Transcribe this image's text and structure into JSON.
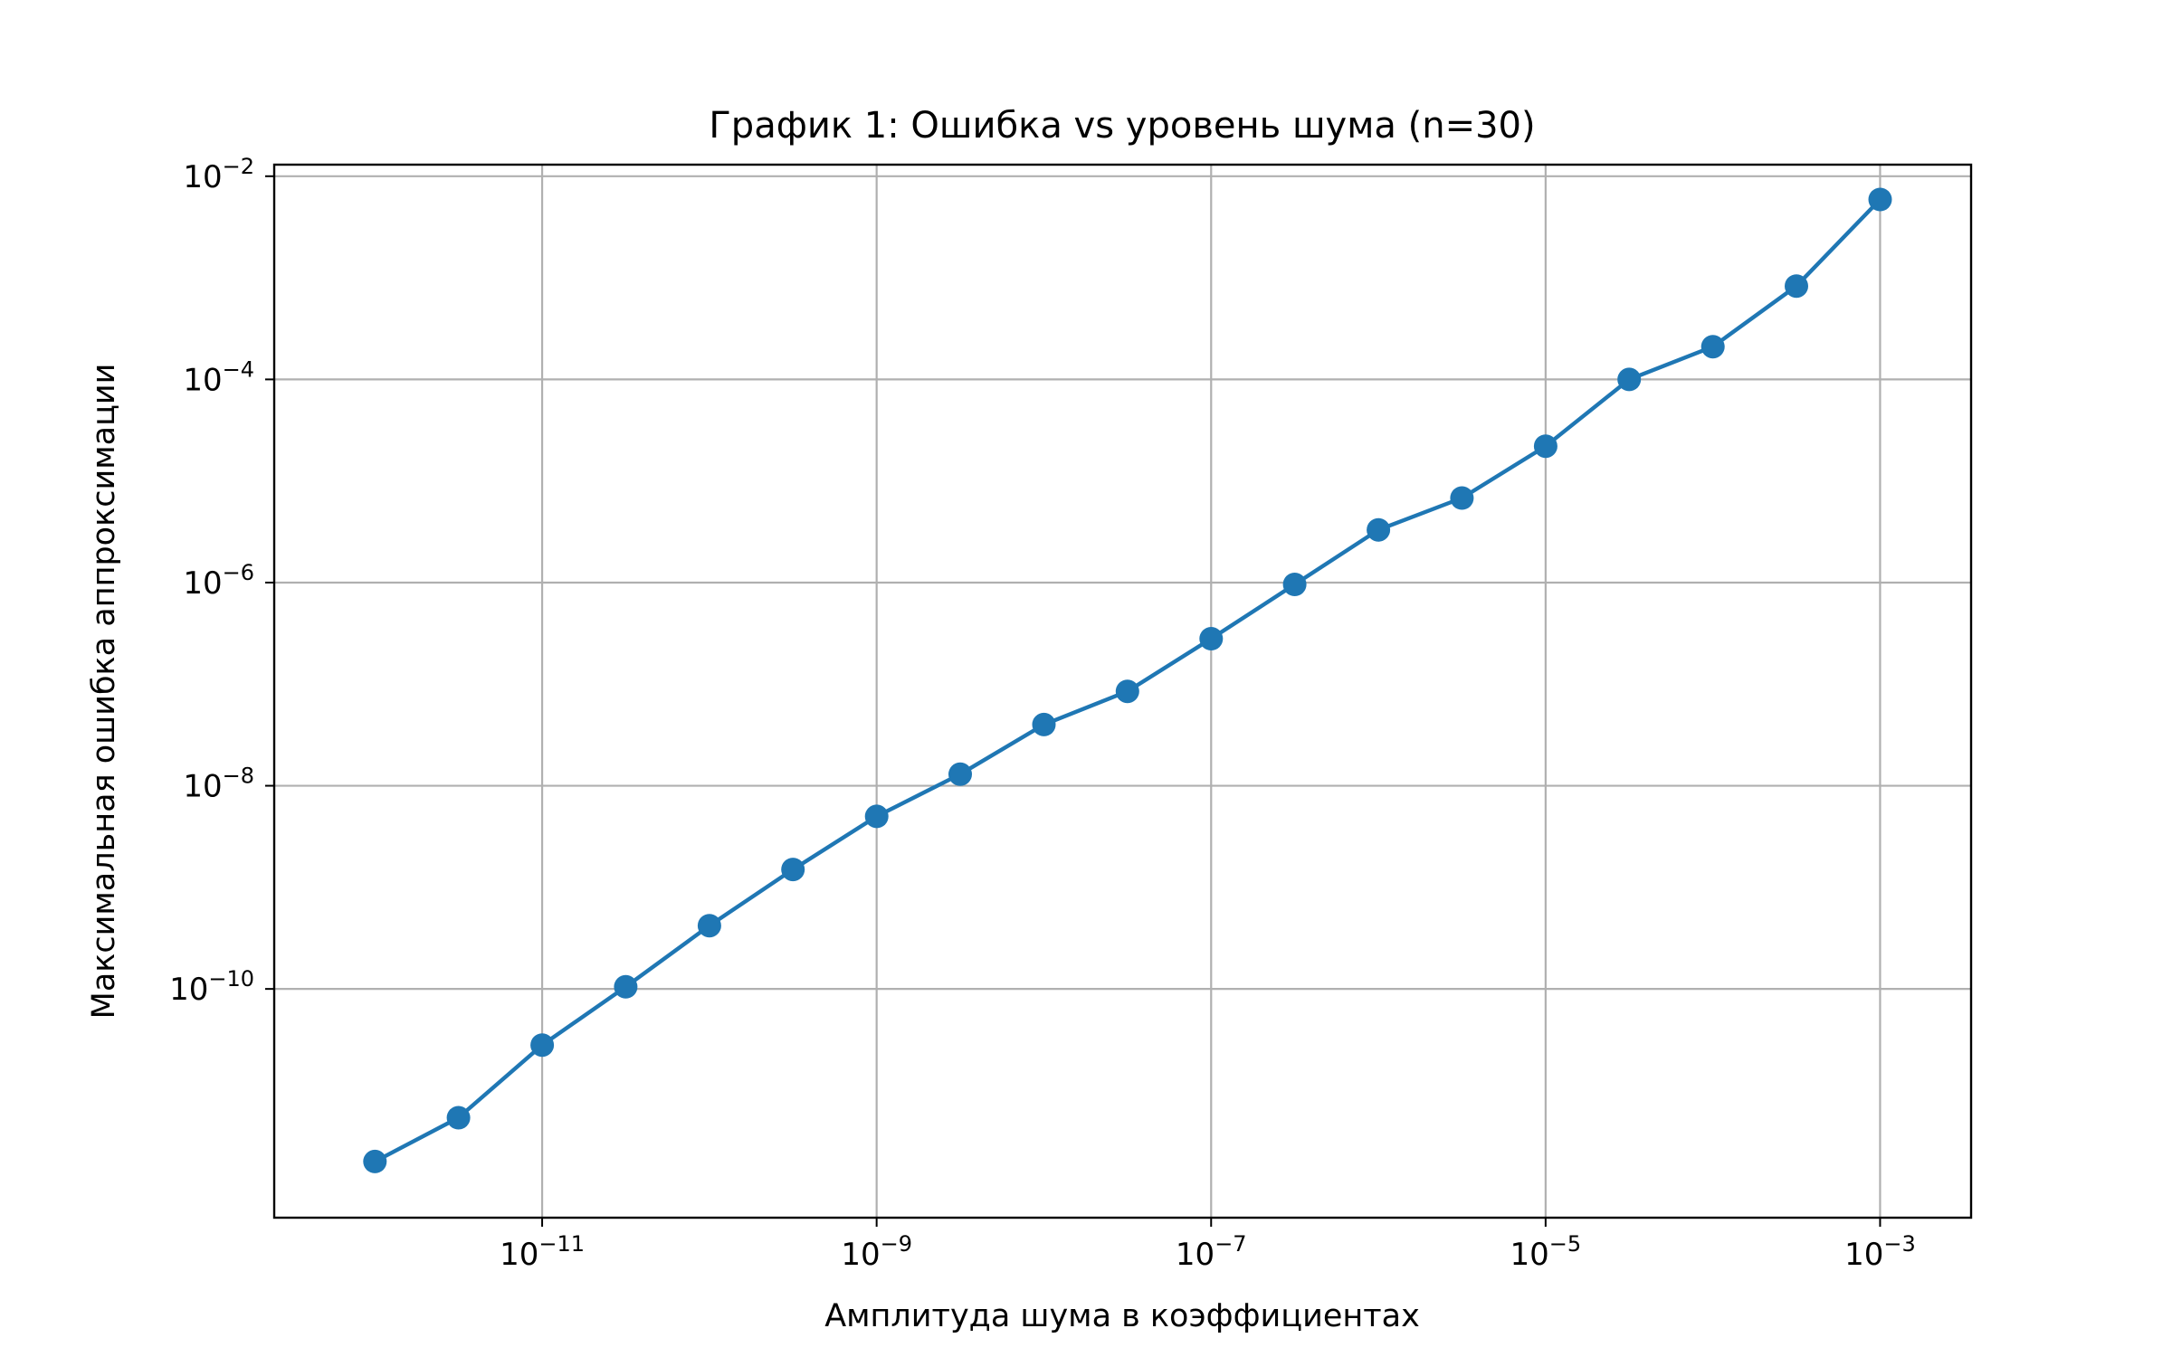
{
  "chart_data": {
    "type": "line",
    "title": "График 1: Ошибка vs уровень шума (n=30)",
    "xlabel": "Амплитуда шума в коэффициентах",
    "ylabel": "Максимальная ошибка аппроксимации",
    "xscale": "log",
    "yscale": "log",
    "grid": true,
    "xlim": [
      2.5e-13,
      0.0035
    ],
    "ylim": [
      5.6e-13,
      0.013
    ],
    "x_ticks": [
      {
        "base": "10",
        "exp": "−11",
        "value": 1e-11
      },
      {
        "base": "10",
        "exp": "−9",
        "value": 1e-09
      },
      {
        "base": "10",
        "exp": "−7",
        "value": 1e-07
      },
      {
        "base": "10",
        "exp": "−5",
        "value": 1e-05
      },
      {
        "base": "10",
        "exp": "−3",
        "value": 0.001
      }
    ],
    "y_ticks": [
      {
        "base": "10",
        "exp": "−2",
        "value": 0.01
      },
      {
        "base": "10",
        "exp": "−4",
        "value": 0.0001
      },
      {
        "base": "10",
        "exp": "−6",
        "value": 1e-06
      },
      {
        "base": "10",
        "exp": "−8",
        "value": 1e-08
      },
      {
        "base": "10",
        "exp": "−10",
        "value": 1e-10
      }
    ],
    "color": "#1f77b4",
    "series": [
      {
        "x": [
          1e-12,
          3.16e-12,
          1e-11,
          3.16e-11,
          1e-10,
          3.16e-10,
          1e-09,
          3.16e-09,
          1e-08,
          3.16e-08,
          1e-07,
          3.16e-07,
          1e-06,
          3.16e-06,
          1e-05,
          3.16e-05,
          0.0001,
          0.000316,
          0.001
        ],
        "y": [
          2e-12,
          5.4e-12,
          2.8e-11,
          1.05e-10,
          4.2e-10,
          1.5e-09,
          5e-09,
          1.3e-08,
          4e-08,
          8.5e-08,
          2.8e-07,
          9.6e-07,
          3.3e-06,
          6.8e-06,
          2.2e-05,
          0.0001,
          0.00021,
          0.00083,
          0.002
        ],
        "y_last": 0.0059
      }
    ]
  }
}
